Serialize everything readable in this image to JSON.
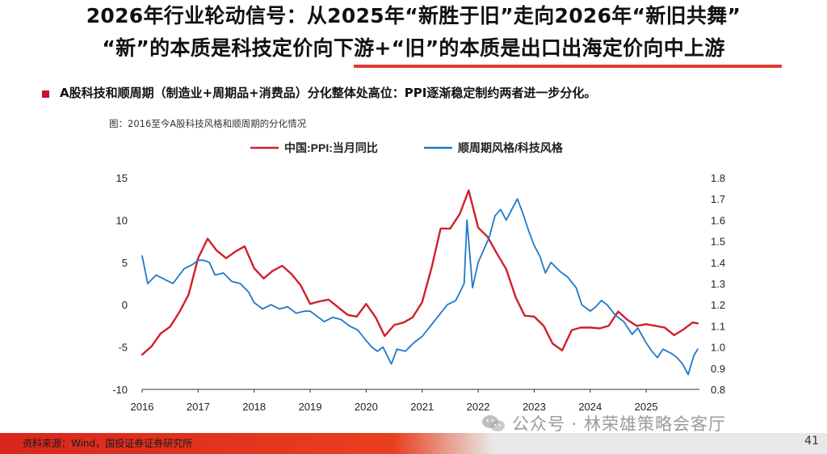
{
  "header": {
    "title_line1": "2026年行业轮动信号：从2025年“新胜于旧”走向2026年“新旧共舞”",
    "title_line2": "“新”的本质是科技定价向下游+“旧”的本质是出口出海定价向中上游"
  },
  "subtitle": "A股科技和顺周期（制造业+周期品+消费品）分化整体处高位：PPI逐渐稳定制约两者进一步分化。",
  "figure_caption": "图：2016至今A股科技风格和顺周期的分化情况",
  "footer": {
    "source": "资料来源：Wind，国投证券证券研究所",
    "page_number": "41",
    "watermark": "公众号 · 林荣雄策略会客厅"
  },
  "colors": {
    "accent": "#e03a2f",
    "ppi_line": "#d0202a",
    "ratio_line": "#1f78c8"
  },
  "chart_data": {
    "type": "line",
    "legend_position": "top",
    "grid": false,
    "x_ticks": [
      "2016",
      "2017",
      "2018",
      "2019",
      "2020",
      "2021",
      "2022",
      "2023",
      "2024",
      "2025"
    ],
    "xlim": [
      2016,
      2025.95
    ],
    "y_left": {
      "ylim": [
        -10,
        15
      ],
      "ticks": [
        "-10",
        "-5",
        "0",
        "5",
        "10",
        "15"
      ]
    },
    "y_right": {
      "ylim": [
        0.8,
        1.8
      ],
      "ticks": [
        "0.8",
        "0.9",
        "1.0",
        "1.1",
        "1.2",
        "1.3",
        "1.4",
        "1.5",
        "1.6",
        "1.7",
        "1.8"
      ]
    },
    "series": [
      {
        "name": "中国:PPI:当月同比",
        "axis": "left",
        "color": "#d0202a",
        "points": [
          [
            2016.0,
            -5.9
          ],
          [
            2016.17,
            -4.9
          ],
          [
            2016.33,
            -3.4
          ],
          [
            2016.5,
            -2.6
          ],
          [
            2016.67,
            -0.8
          ],
          [
            2016.83,
            1.2
          ],
          [
            2017.0,
            5.5
          ],
          [
            2017.17,
            7.8
          ],
          [
            2017.33,
            6.4
          ],
          [
            2017.5,
            5.5
          ],
          [
            2017.67,
            6.3
          ],
          [
            2017.83,
            6.9
          ],
          [
            2018.0,
            4.3
          ],
          [
            2018.17,
            3.1
          ],
          [
            2018.33,
            4.0
          ],
          [
            2018.5,
            4.6
          ],
          [
            2018.67,
            3.6
          ],
          [
            2018.83,
            2.3
          ],
          [
            2019.0,
            0.1
          ],
          [
            2019.17,
            0.4
          ],
          [
            2019.33,
            0.6
          ],
          [
            2019.5,
            -0.3
          ],
          [
            2019.67,
            -1.2
          ],
          [
            2019.83,
            -1.4
          ],
          [
            2020.0,
            0.1
          ],
          [
            2020.17,
            -1.5
          ],
          [
            2020.33,
            -3.7
          ],
          [
            2020.5,
            -2.4
          ],
          [
            2020.67,
            -2.1
          ],
          [
            2020.83,
            -1.5
          ],
          [
            2021.0,
            0.3
          ],
          [
            2021.17,
            4.4
          ],
          [
            2021.33,
            9.0
          ],
          [
            2021.5,
            9.0
          ],
          [
            2021.67,
            10.7
          ],
          [
            2021.83,
            13.5
          ],
          [
            2022.0,
            9.1
          ],
          [
            2022.17,
            8.0
          ],
          [
            2022.33,
            6.1
          ],
          [
            2022.5,
            4.2
          ],
          [
            2022.67,
            0.9
          ],
          [
            2022.83,
            -1.3
          ],
          [
            2023.0,
            -1.4
          ],
          [
            2023.17,
            -2.5
          ],
          [
            2023.33,
            -4.6
          ],
          [
            2023.5,
            -5.4
          ],
          [
            2023.67,
            -3.0
          ],
          [
            2023.83,
            -2.7
          ],
          [
            2024.0,
            -2.7
          ],
          [
            2024.17,
            -2.8
          ],
          [
            2024.33,
            -2.5
          ],
          [
            2024.5,
            -0.8
          ],
          [
            2024.67,
            -1.8
          ],
          [
            2024.83,
            -2.5
          ],
          [
            2025.0,
            -2.3
          ],
          [
            2025.17,
            -2.5
          ],
          [
            2025.33,
            -2.7
          ],
          [
            2025.5,
            -3.6
          ],
          [
            2025.67,
            -2.9
          ],
          [
            2025.83,
            -2.1
          ],
          [
            2025.92,
            -2.2
          ]
        ]
      },
      {
        "name": "顺周期风格/科技风格",
        "axis": "right",
        "color": "#1f78c8",
        "points": [
          [
            2016.0,
            1.43
          ],
          [
            2016.1,
            1.3
          ],
          [
            2016.25,
            1.34
          ],
          [
            2016.4,
            1.32
          ],
          [
            2016.55,
            1.3
          ],
          [
            2016.75,
            1.37
          ],
          [
            2016.9,
            1.39
          ],
          [
            2017.0,
            1.41
          ],
          [
            2017.1,
            1.41
          ],
          [
            2017.2,
            1.4
          ],
          [
            2017.3,
            1.34
          ],
          [
            2017.45,
            1.35
          ],
          [
            2017.6,
            1.31
          ],
          [
            2017.75,
            1.3
          ],
          [
            2017.9,
            1.26
          ],
          [
            2018.0,
            1.21
          ],
          [
            2018.15,
            1.18
          ],
          [
            2018.3,
            1.2
          ],
          [
            2018.45,
            1.18
          ],
          [
            2018.6,
            1.19
          ],
          [
            2018.75,
            1.16
          ],
          [
            2018.9,
            1.17
          ],
          [
            2019.0,
            1.17
          ],
          [
            2019.1,
            1.15
          ],
          [
            2019.25,
            1.12
          ],
          [
            2019.4,
            1.14
          ],
          [
            2019.55,
            1.13
          ],
          [
            2019.7,
            1.1
          ],
          [
            2019.85,
            1.08
          ],
          [
            2020.0,
            1.03
          ],
          [
            2020.1,
            1.0
          ],
          [
            2020.2,
            0.98
          ],
          [
            2020.3,
            1.0
          ],
          [
            2020.45,
            0.92
          ],
          [
            2020.55,
            0.99
          ],
          [
            2020.7,
            0.98
          ],
          [
            2020.85,
            1.02
          ],
          [
            2021.0,
            1.05
          ],
          [
            2021.15,
            1.1
          ],
          [
            2021.3,
            1.15
          ],
          [
            2021.45,
            1.2
          ],
          [
            2021.6,
            1.22
          ],
          [
            2021.75,
            1.3
          ],
          [
            2021.8,
            1.6
          ],
          [
            2021.9,
            1.28
          ],
          [
            2022.0,
            1.4
          ],
          [
            2022.1,
            1.46
          ],
          [
            2022.2,
            1.52
          ],
          [
            2022.3,
            1.62
          ],
          [
            2022.4,
            1.65
          ],
          [
            2022.5,
            1.6
          ],
          [
            2022.6,
            1.65
          ],
          [
            2022.7,
            1.7
          ],
          [
            2022.8,
            1.63
          ],
          [
            2022.9,
            1.55
          ],
          [
            2023.0,
            1.48
          ],
          [
            2023.1,
            1.43
          ],
          [
            2023.2,
            1.35
          ],
          [
            2023.3,
            1.4
          ],
          [
            2023.45,
            1.36
          ],
          [
            2023.6,
            1.33
          ],
          [
            2023.75,
            1.28
          ],
          [
            2023.85,
            1.2
          ],
          [
            2024.0,
            1.17
          ],
          [
            2024.1,
            1.19
          ],
          [
            2024.2,
            1.22
          ],
          [
            2024.3,
            1.2
          ],
          [
            2024.45,
            1.15
          ],
          [
            2024.6,
            1.12
          ],
          [
            2024.75,
            1.06
          ],
          [
            2024.85,
            1.09
          ],
          [
            2025.0,
            1.02
          ],
          [
            2025.1,
            0.98
          ],
          [
            2025.2,
            0.95
          ],
          [
            2025.3,
            0.99
          ],
          [
            2025.45,
            0.97
          ],
          [
            2025.55,
            0.95
          ],
          [
            2025.65,
            0.92
          ],
          [
            2025.75,
            0.87
          ],
          [
            2025.85,
            0.96
          ],
          [
            2025.92,
            0.99
          ]
        ]
      }
    ]
  }
}
